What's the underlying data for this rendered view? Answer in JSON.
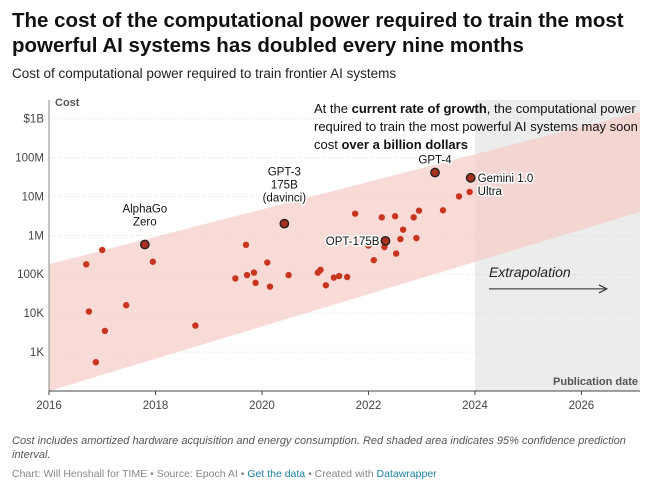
{
  "title": "The cost of the computational power required to train the most powerful AI systems has doubled every nine months",
  "subtitle": "Cost of computational power required to train frontier AI systems",
  "footnote": "Cost includes amortized hardware acquisition and energy consumption. Red shaded area indicates 95% confidence prediction interval.",
  "credits": {
    "byline": "Chart: Will Henshall for TIME",
    "sep1": " • ",
    "source": "Source: Epoch AI",
    "sep2": " • ",
    "get_data": "Get the data",
    "sep3": " • ",
    "created_prefix": "Created with ",
    "tool": "Datawrapper"
  },
  "colors": {
    "point": "#c8351f",
    "band": "#f6cfc9",
    "extrapolation_bg": "#ececec",
    "grid": "#dddddd"
  },
  "chart_data": {
    "type": "scatter",
    "xlabel": "Publication date",
    "ylabel": "Cost",
    "y_scale": "log",
    "xlim": [
      2016,
      2027.1
    ],
    "ylim": [
      100,
      3000000000
    ],
    "x_ticks": [
      {
        "value": 2016,
        "label": "2016"
      },
      {
        "value": 2018,
        "label": "2018"
      },
      {
        "value": 2020,
        "label": "2020"
      },
      {
        "value": 2022,
        "label": "2022"
      },
      {
        "value": 2024,
        "label": "2024"
      },
      {
        "value": 2026,
        "label": "2026"
      }
    ],
    "y_ticks": [
      {
        "value": 1000,
        "label": "1K"
      },
      {
        "value": 10000,
        "label": "10K"
      },
      {
        "value": 100000,
        "label": "100K"
      },
      {
        "value": 1000000,
        "label": "1M"
      },
      {
        "value": 10000000,
        "label": "10M"
      },
      {
        "value": 100000000,
        "label": "100M"
      },
      {
        "value": 1000000000,
        "label": "$1B"
      }
    ],
    "prediction_band": {
      "x": [
        2016,
        2027.1
      ],
      "lower": [
        100,
        4000000
      ],
      "upper": [
        180000,
        1500000000
      ]
    },
    "extrapolation_region": {
      "x_start": 2024,
      "label": "Extrapolation"
    },
    "annotation_text": {
      "part1": "At the ",
      "bold1": "current rate of growth",
      "part2": ", the computational power required to train the most powerful AI systems may soon cost ",
      "bold2": "over a billion dollars"
    },
    "points": [
      {
        "x": 2016.7,
        "y": 180000
      },
      {
        "x": 2016.75,
        "y": 11000
      },
      {
        "x": 2016.88,
        "y": 550
      },
      {
        "x": 2017.0,
        "y": 420000
      },
      {
        "x": 2017.05,
        "y": 3500
      },
      {
        "x": 2017.45,
        "y": 16000
      },
      {
        "x": 2017.8,
        "y": 580000,
        "label": "AlphaGo Zero",
        "highlight": true
      },
      {
        "x": 2017.95,
        "y": 210000
      },
      {
        "x": 2018.75,
        "y": 4800
      },
      {
        "x": 2019.5,
        "y": 78000
      },
      {
        "x": 2019.7,
        "y": 570000
      },
      {
        "x": 2019.72,
        "y": 95000
      },
      {
        "x": 2019.85,
        "y": 110000
      },
      {
        "x": 2019.88,
        "y": 60000
      },
      {
        "x": 2020.1,
        "y": 200000
      },
      {
        "x": 2020.15,
        "y": 48000
      },
      {
        "x": 2020.42,
        "y": 2000000,
        "label": "GPT-3 175B (davinci)",
        "highlight": true
      },
      {
        "x": 2020.5,
        "y": 95000
      },
      {
        "x": 2021.05,
        "y": 110000
      },
      {
        "x": 2021.1,
        "y": 130000
      },
      {
        "x": 2021.2,
        "y": 52000
      },
      {
        "x": 2021.35,
        "y": 82000
      },
      {
        "x": 2021.45,
        "y": 90000
      },
      {
        "x": 2021.6,
        "y": 85000
      },
      {
        "x": 2021.75,
        "y": 3600000
      },
      {
        "x": 2022.0,
        "y": 550000
      },
      {
        "x": 2022.1,
        "y": 230000
      },
      {
        "x": 2022.25,
        "y": 2900000
      },
      {
        "x": 2022.3,
        "y": 500000
      },
      {
        "x": 2022.32,
        "y": 720000,
        "label": "OPT-175B",
        "highlight": true
      },
      {
        "x": 2022.5,
        "y": 3100000
      },
      {
        "x": 2022.52,
        "y": 340000
      },
      {
        "x": 2022.6,
        "y": 800000
      },
      {
        "x": 2022.65,
        "y": 1400000
      },
      {
        "x": 2022.85,
        "y": 2900000
      },
      {
        "x": 2022.9,
        "y": 850000
      },
      {
        "x": 2022.95,
        "y": 4300000
      },
      {
        "x": 2023.25,
        "y": 41000000,
        "label": "GPT-4",
        "highlight": true
      },
      {
        "x": 2023.4,
        "y": 4400000
      },
      {
        "x": 2023.7,
        "y": 10000000
      },
      {
        "x": 2023.9,
        "y": 13000000
      },
      {
        "x": 2023.92,
        "y": 30000000,
        "label": "Gemini 1.0 Ultra",
        "highlight": true
      }
    ],
    "point_labels": [
      {
        "lines": [
          "AlphaGo",
          "Zero"
        ]
      },
      {
        "lines": [
          "GPT-3",
          "175B",
          "(davinci)"
        ]
      },
      {
        "lines": [
          "OPT-175B"
        ]
      },
      {
        "lines": [
          "GPT-4"
        ]
      },
      {
        "lines": [
          "Gemini 1.0",
          "Ultra"
        ]
      }
    ]
  }
}
